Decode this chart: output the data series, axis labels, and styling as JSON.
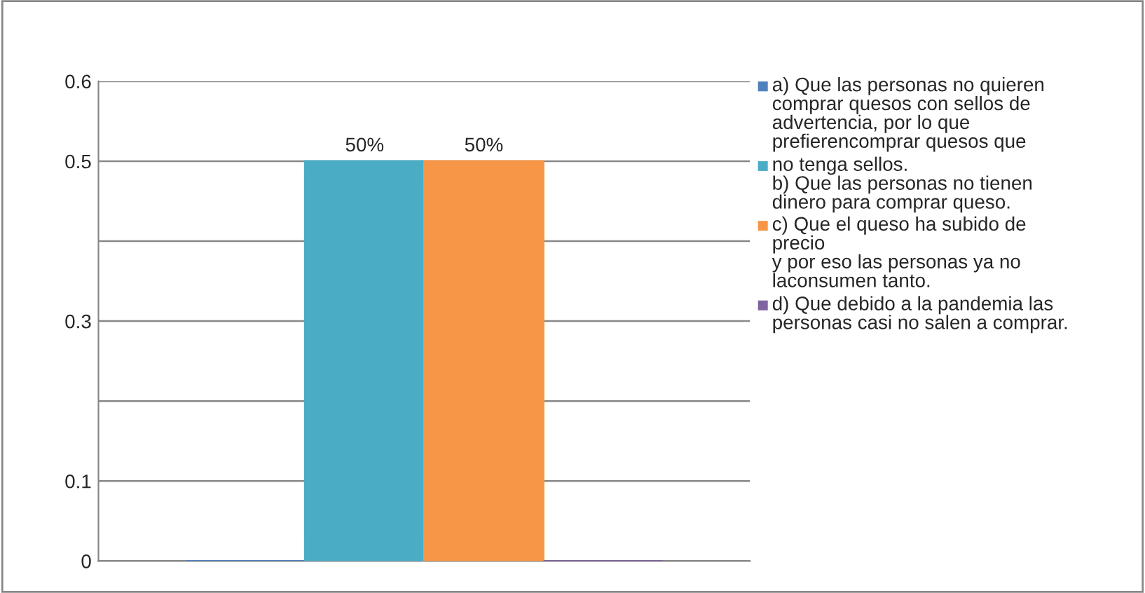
{
  "chart_data": {
    "type": "bar",
    "categories": [
      null
    ],
    "series": [
      {
        "name": "a) Que las personas no quieren\ncomprar quesos con sellos de\nadvertencia, por lo que\nprefierencomprar quesos que",
        "color": "#4f81bd",
        "values": [
          0
        ]
      },
      {
        "name": "no tenga sellos.\nb) Que las personas no tienen\ndinero para comprar queso.",
        "color": "#4bacc6",
        "values": [
          0.5
        ],
        "value_labels": [
          "50%"
        ]
      },
      {
        "name": "c) Que el queso ha subido de\nprecio\ny por eso las personas ya no\nlaconsumen tanto.",
        "color": "#f79646",
        "values": [
          0.5
        ],
        "value_labels": [
          "50%"
        ]
      },
      {
        "name": "d) Que debido a la pandemia las\npersonas casi no salen a comprar.",
        "color": "#8064a2",
        "values": [
          0
        ]
      }
    ],
    "ylim": [
      0,
      0.6
    ],
    "yticks": [
      0,
      0.1,
      {
        "value": 0.2,
        "label": null
      },
      0.3,
      {
        "value": 0.4,
        "label": null
      },
      0.5,
      0.6
    ],
    "grid": "y",
    "legend": "right"
  }
}
